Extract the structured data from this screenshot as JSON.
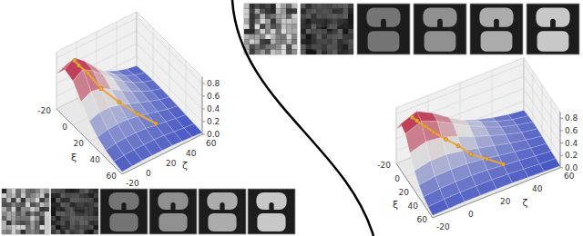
{
  "chart_data": [
    {
      "type": "surface3d",
      "xlabel": "ξ",
      "ylabel": "ζ",
      "x": [
        -20,
        -10,
        0,
        10,
        20,
        30,
        40,
        50,
        60
      ],
      "y": [
        -20,
        -10,
        0,
        10,
        20,
        30,
        40,
        50,
        60
      ],
      "z": [
        [
          0.55,
          0.62,
          0.55,
          0.42,
          0.3,
          0.2,
          0.13,
          0.08,
          0.05
        ],
        [
          0.75,
          0.85,
          0.72,
          0.55,
          0.4,
          0.28,
          0.18,
          0.11,
          0.07
        ],
        [
          0.7,
          0.8,
          0.7,
          0.56,
          0.42,
          0.3,
          0.2,
          0.13,
          0.08
        ],
        [
          0.5,
          0.58,
          0.55,
          0.46,
          0.36,
          0.27,
          0.19,
          0.12,
          0.08
        ],
        [
          0.32,
          0.38,
          0.38,
          0.34,
          0.28,
          0.22,
          0.16,
          0.11,
          0.07
        ],
        [
          0.2,
          0.24,
          0.25,
          0.24,
          0.21,
          0.17,
          0.13,
          0.09,
          0.06
        ],
        [
          0.12,
          0.15,
          0.16,
          0.16,
          0.15,
          0.12,
          0.1,
          0.07,
          0.05
        ],
        [
          0.07,
          0.09,
          0.1,
          0.1,
          0.1,
          0.09,
          0.07,
          0.05,
          0.04
        ],
        [
          0.04,
          0.05,
          0.06,
          0.06,
          0.06,
          0.06,
          0.05,
          0.04,
          0.03
        ]
      ],
      "xlim": [
        -20,
        60
      ],
      "ylim": [
        -20,
        60
      ],
      "zlim": [
        0,
        0.9
      ],
      "xticks": [
        -20,
        0,
        20,
        40,
        60
      ],
      "yticks": [
        -20,
        0,
        20,
        40,
        60
      ],
      "zticks": [
        {
          "value": 0,
          "label": "0.0"
        },
        {
          "value": 0.2,
          "label": "0.2"
        },
        {
          "value": 0.4,
          "label": "0.4"
        },
        {
          "value": 0.6,
          "label": "0.6"
        },
        {
          "value": 0.8,
          "label": "0.8"
        }
      ],
      "trajectory": {
        "color": "#eaa83a",
        "marker": "circle",
        "points": [
          [
            40,
            30,
            0.15
          ],
          [
            30,
            20,
            0.25
          ],
          [
            20,
            10,
            0.38
          ],
          [
            10,
            0,
            0.55
          ],
          [
            0,
            -5,
            0.7
          ],
          [
            -5,
            -10,
            0.8
          ],
          [
            -8,
            -12,
            0.85
          ]
        ]
      }
    },
    {
      "type": "surface3d",
      "xlabel": "ξ",
      "ylabel": "ζ",
      "x": [
        -20,
        -10,
        0,
        10,
        20,
        30,
        40,
        50,
        60
      ],
      "y": [
        -20,
        -10,
        0,
        10,
        20,
        30,
        40,
        50,
        60
      ],
      "z": [
        [
          0.55,
          0.62,
          0.55,
          0.42,
          0.3,
          0.2,
          0.13,
          0.08,
          0.05
        ],
        [
          0.75,
          0.85,
          0.72,
          0.55,
          0.4,
          0.28,
          0.18,
          0.11,
          0.07
        ],
        [
          0.7,
          0.8,
          0.7,
          0.56,
          0.42,
          0.3,
          0.2,
          0.13,
          0.08
        ],
        [
          0.5,
          0.58,
          0.55,
          0.46,
          0.36,
          0.27,
          0.19,
          0.12,
          0.08
        ],
        [
          0.32,
          0.38,
          0.38,
          0.34,
          0.28,
          0.22,
          0.16,
          0.11,
          0.07
        ],
        [
          0.2,
          0.24,
          0.25,
          0.24,
          0.21,
          0.17,
          0.13,
          0.09,
          0.06
        ],
        [
          0.12,
          0.15,
          0.16,
          0.16,
          0.15,
          0.12,
          0.1,
          0.07,
          0.05
        ],
        [
          0.07,
          0.09,
          0.1,
          0.1,
          0.1,
          0.09,
          0.07,
          0.05,
          0.04
        ],
        [
          0.04,
          0.05,
          0.06,
          0.06,
          0.06,
          0.06,
          0.05,
          0.04,
          0.03
        ]
      ],
      "xlim": [
        -20,
        60
      ],
      "ylim": [
        -20,
        60
      ],
      "zlim": [
        0,
        0.9
      ],
      "xticks": [
        -20,
        0,
        20,
        40,
        60
      ],
      "yticks": [
        -20,
        0,
        20,
        40,
        60
      ],
      "zticks": [
        {
          "value": 0,
          "label": "0.0"
        },
        {
          "value": 0.2,
          "label": "0.2"
        },
        {
          "value": 0.4,
          "label": "0.4"
        },
        {
          "value": 0.6,
          "label": "0.6"
        },
        {
          "value": 0.8,
          "label": "0.8"
        }
      ],
      "trajectory": {
        "color": "#eaa83a",
        "marker": "circle",
        "points": [
          [
            40,
            30,
            0.14
          ],
          [
            32,
            22,
            0.22
          ],
          [
            25,
            14,
            0.3
          ],
          [
            18,
            8,
            0.42
          ],
          [
            12,
            2,
            0.52
          ],
          [
            6,
            -4,
            0.63
          ],
          [
            2,
            -8,
            0.72
          ],
          [
            -3,
            -12,
            0.8
          ],
          [
            -6,
            -14,
            0.84
          ]
        ]
      }
    }
  ]
}
